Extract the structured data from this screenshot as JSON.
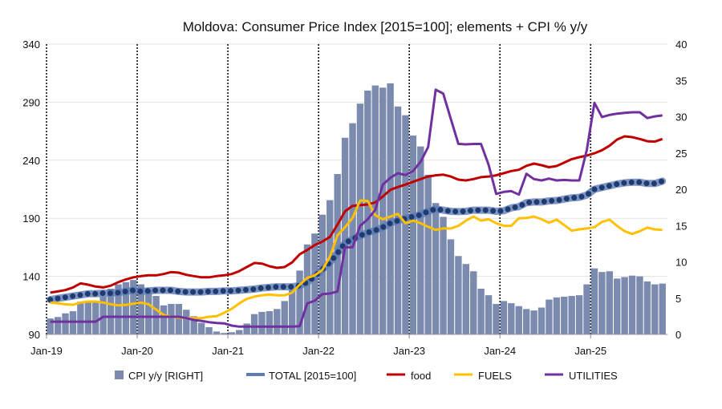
{
  "chart_data": {
    "type": "bar+line",
    "title": "Moldova: Consumer Price Index [2015=100]; elements + CPI % y/y",
    "x_start": "Jan-19",
    "x_end": "Oct-25",
    "frequency": "monthly",
    "x_tick_labels": [
      "Jan-19",
      "Jan-20",
      "Jan-21",
      "Jan-22",
      "Jan-23",
      "Jan-24",
      "Jan-25"
    ],
    "left_axis": {
      "ylim": [
        90,
        340
      ],
      "ticks": [
        90,
        140,
        190,
        240,
        290,
        340
      ]
    },
    "right_axis": {
      "ylim": [
        0,
        40
      ],
      "ticks": [
        0,
        5,
        10,
        15,
        20,
        25,
        30,
        35,
        40
      ]
    },
    "grid": "horizontal gridlines; dotted vertical lines at each January",
    "legend_position": "bottom",
    "series": [
      {
        "name": "CPI y/y [RIGHT]",
        "type": "bar",
        "axis": "right",
        "color": "#7b8bb0",
        "values": [
          2.2,
          2.4,
          2.9,
          3.2,
          4.5,
          4.5,
          4.5,
          5.2,
          6.3,
          6.9,
          7.2,
          7.5,
          6.9,
          6.1,
          5.3,
          4.0,
          4.2,
          4.2,
          3.4,
          2.5,
          1.6,
          1.0,
          0.4,
          0.2,
          0.3,
          0.6,
          1.5,
          2.8,
          3.1,
          3.2,
          3.5,
          4.6,
          6.1,
          8.8,
          12.4,
          13.9,
          16.5,
          18.5,
          22.1,
          27.1,
          29.1,
          31.8,
          33.6,
          34.3,
          34.0,
          34.6,
          31.4,
          30.2,
          27.4,
          25.9,
          22.0,
          18.1,
          16.2,
          13.1,
          10.8,
          9.7,
          8.7,
          6.3,
          5.4,
          4.2,
          4.6,
          4.3,
          3.9,
          3.5,
          3.3,
          3.7,
          4.8,
          5.1,
          5.2,
          5.3,
          5.4,
          6.9,
          9.1,
          8.6,
          8.7,
          7.7,
          7.9,
          8.1,
          8.0,
          7.3,
          6.9,
          7.0
        ]
      },
      {
        "name": "TOTAL [2015=100]",
        "type": "line",
        "axis": "left",
        "color": "#1f3a6e",
        "values": [
          120,
          121,
          122,
          123,
          124,
          125,
          125,
          125.5,
          125.5,
          126,
          127,
          128,
          127,
          127.5,
          128,
          128,
          128,
          127,
          126.5,
          126.5,
          126.5,
          127,
          127,
          127.5,
          127.5,
          128,
          128.5,
          129,
          130,
          130.5,
          131,
          131,
          131,
          132,
          135,
          140,
          146,
          152,
          160,
          168.7,
          172,
          175,
          177.7,
          179.6,
          182.3,
          185.8,
          188,
          189.7,
          191.5,
          193,
          196,
          198,
          197,
          196,
          195.7,
          196,
          197,
          197,
          197,
          196,
          196.5,
          199,
          200,
          203.5,
          204,
          204,
          205,
          205.3,
          206.5,
          207.6,
          208,
          210,
          215,
          216.5,
          218,
          219.5,
          220.5,
          221,
          221,
          220,
          220,
          222
        ]
      },
      {
        "name": "food",
        "type": "line",
        "axis": "left",
        "color": "#c00000",
        "values": [
          126,
          127,
          128.2,
          130.5,
          134,
          132.8,
          131.2,
          130.5,
          132,
          135,
          137.4,
          139.2,
          140.2,
          140.9,
          140.9,
          142,
          143.7,
          143.2,
          141.3,
          140.2,
          139.2,
          139.2,
          140.2,
          140.9,
          142,
          144.5,
          148,
          151.5,
          151,
          148.7,
          147.3,
          148,
          152,
          159,
          162.7,
          167,
          170,
          174,
          184.6,
          196,
          200.7,
          201.4,
          201.9,
          203.7,
          208.8,
          214.5,
          216.9,
          219,
          221.4,
          223.8,
          226,
          227,
          227.6,
          226,
          223.3,
          222.6,
          223.8,
          225.4,
          226,
          227,
          228.8,
          230.7,
          231.8,
          235.2,
          237.1,
          235.7,
          234,
          235,
          238,
          241,
          242.6,
          244,
          246,
          248.6,
          252.5,
          257.8,
          260.6,
          259.9,
          258.3,
          256.4,
          256,
          258.3
        ]
      },
      {
        "name": "FUELS",
        "type": "line",
        "axis": "left",
        "color": "#ffc000",
        "values": [
          117.4,
          116.7,
          116,
          115.5,
          117.4,
          118.3,
          118.3,
          117.4,
          116,
          115,
          115.5,
          116.5,
          117.4,
          116,
          111.4,
          106.8,
          105.2,
          104.5,
          104,
          104,
          104,
          105.2,
          105.7,
          108.6,
          112,
          116.7,
          120.6,
          122.5,
          123.6,
          124.3,
          123.6,
          123.6,
          125.9,
          132.8,
          138.6,
          140.9,
          145.5,
          157,
          175.4,
          182.3,
          190.3,
          205.3,
          204.9,
          192.7,
          189.2,
          191.5,
          193.8,
          185.8,
          188,
          185.8,
          182.7,
          180,
          181.2,
          181.2,
          183.5,
          188,
          191.5,
          188,
          189.2,
          185.8,
          183.5,
          183.5,
          190,
          190.3,
          191.5,
          189.2,
          186.2,
          188.8,
          184.2,
          179.3,
          180.5,
          181.2,
          182.3,
          186.9,
          188.8,
          183.5,
          178.9,
          176.5,
          178.9,
          181.9,
          180.5,
          180
        ]
      },
      {
        "name": "UTILITIES",
        "type": "line",
        "axis": "left",
        "color": "#7030a0",
        "values": [
          101,
          101,
          101,
          101,
          101,
          101,
          101,
          105.2,
          105.2,
          105.2,
          105.2,
          105.2,
          105.2,
          105.2,
          105.2,
          105.2,
          105.2,
          105.2,
          104,
          102.4,
          101.7,
          100.6,
          99.9,
          99.5,
          97.6,
          96.7,
          96.7,
          96.7,
          96.7,
          96.7,
          96.7,
          96.7,
          96.7,
          97.1,
          116.7,
          119,
          124.7,
          125.2,
          127,
          165,
          165,
          183.5,
          189.2,
          197.3,
          219,
          224.9,
          228.8,
          227.2,
          230.7,
          238.7,
          251.4,
          300.8,
          297.4,
          275.5,
          254.1,
          253.7,
          254,
          254,
          236,
          211,
          212.7,
          213.4,
          210.4,
          228.3,
          223.8,
          222.6,
          224.2,
          222.6,
          223,
          222.6,
          222.6,
          249,
          289.4,
          277.2,
          279,
          280.1,
          280.8,
          281.3,
          281.3,
          276.3,
          277.8,
          278.6
        ]
      }
    ]
  }
}
